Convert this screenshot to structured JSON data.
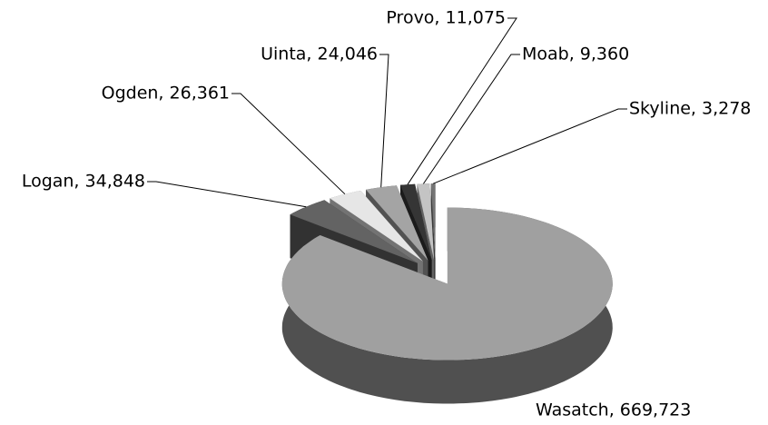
{
  "chart_data": {
    "type": "pie3d",
    "categories": [
      "Wasatch",
      "Logan",
      "Ogden",
      "Uinta",
      "Provo",
      "Moab",
      "Skyline"
    ],
    "values": [
      669723,
      34848,
      26361,
      24046,
      11075,
      9360,
      3278
    ],
    "value_labels": [
      "Wasatch, 669,723",
      "Logan, 34,848",
      "Ogden, 26,361",
      "Uinta, 24,046",
      "Provo, 11,075",
      "Moab, 9,360",
      "Skyline, 3,278"
    ],
    "colors": [
      "#a0a0a0",
      "#636363",
      "#e6e6e6",
      "#a4a4a4",
      "#353535",
      "#c4c4c4",
      "#747474"
    ]
  }
}
